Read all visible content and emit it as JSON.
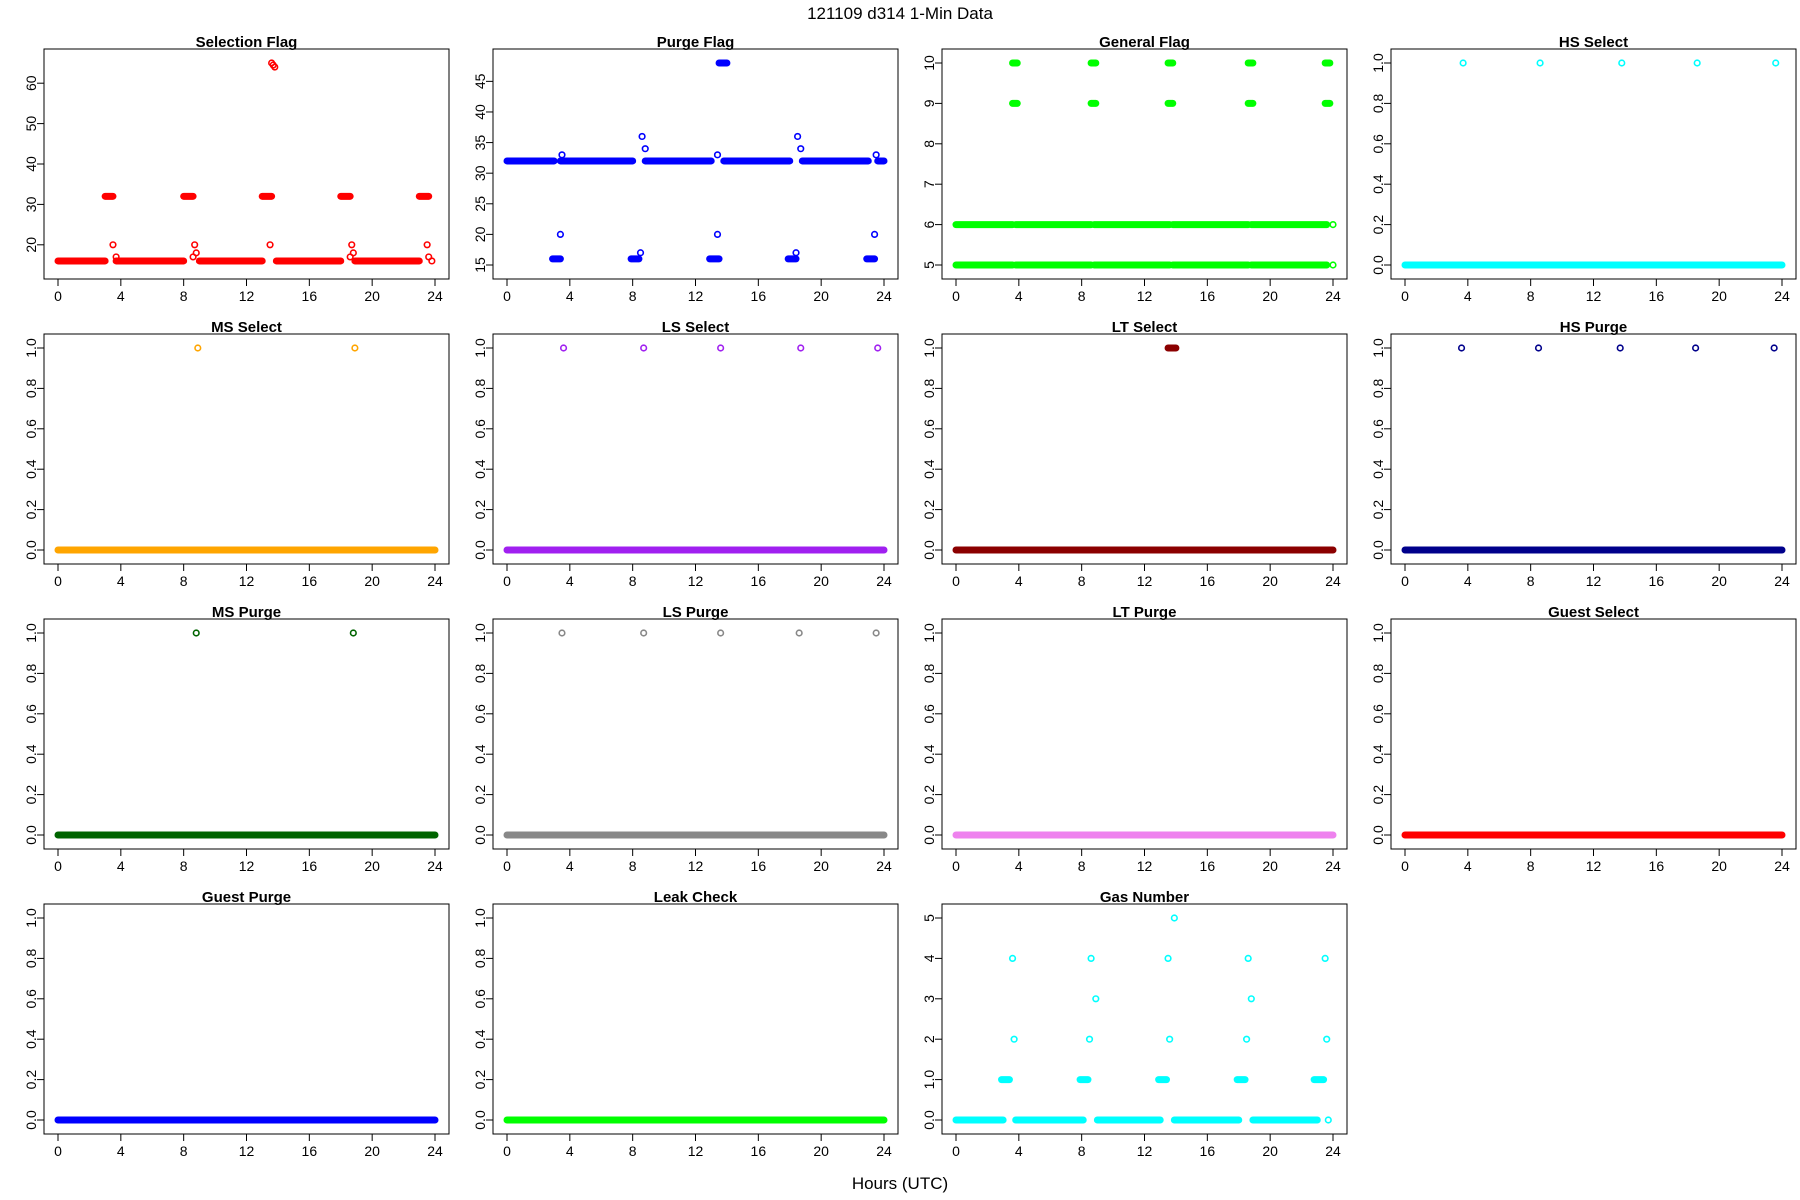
{
  "figure": {
    "title": "121109   d314   1-Min Data",
    "xlabel": "Hours (UTC)"
  },
  "chart_data": [
    {
      "type": "scatter",
      "title": "Selection Flag",
      "color": "#ff0000",
      "xlim": [
        0,
        24
      ],
      "ylim": [
        15,
        65
      ],
      "xticks": [
        0,
        4,
        8,
        12,
        16,
        20,
        24
      ],
      "yticks": [
        20,
        30,
        40,
        50,
        60
      ],
      "runs": [
        [
          0,
          3.0,
          16
        ],
        [
          3.7,
          8.0,
          16
        ],
        [
          9.0,
          13.0,
          16
        ],
        [
          13.9,
          18.0,
          16
        ],
        [
          18.9,
          23.0,
          16
        ],
        [
          3.0,
          3.5,
          32
        ],
        [
          8.0,
          8.6,
          32
        ],
        [
          13.0,
          13.6,
          32
        ],
        [
          18.0,
          18.6,
          32
        ],
        [
          23.0,
          23.6,
          32
        ]
      ],
      "points": [
        [
          3.5,
          20
        ],
        [
          3.7,
          17
        ],
        [
          8.6,
          17
        ],
        [
          8.7,
          20
        ],
        [
          8.8,
          18
        ],
        [
          13.5,
          20
        ],
        [
          13.6,
          65
        ],
        [
          13.7,
          64.5
        ],
        [
          13.8,
          64
        ],
        [
          18.6,
          17
        ],
        [
          18.7,
          20
        ],
        [
          18.8,
          18
        ],
        [
          23.5,
          20
        ],
        [
          23.6,
          17
        ],
        [
          23.8,
          16
        ]
      ]
    },
    {
      "type": "scatter",
      "title": "Purge Flag",
      "color": "#0000ff",
      "xlim": [
        0,
        24
      ],
      "ylim": [
        15,
        48
      ],
      "xticks": [
        0,
        4,
        8,
        12,
        16,
        20,
        24
      ],
      "yticks": [
        15,
        20,
        25,
        30,
        35,
        40,
        45
      ],
      "runs": [
        [
          0,
          3.0,
          32
        ],
        [
          3.4,
          8.0,
          32
        ],
        [
          8.8,
          13.0,
          32
        ],
        [
          13.8,
          18.0,
          32
        ],
        [
          18.8,
          23.0,
          32
        ],
        [
          23.6,
          24,
          32
        ],
        [
          2.9,
          3.4,
          16
        ],
        [
          7.9,
          8.4,
          16
        ],
        [
          12.9,
          13.5,
          16
        ],
        [
          17.9,
          18.4,
          16
        ],
        [
          22.9,
          23.4,
          16
        ],
        [
          13.5,
          14.0,
          48
        ]
      ],
      "points": [
        [
          3.4,
          20
        ],
        [
          3.5,
          33
        ],
        [
          8.5,
          17
        ],
        [
          8.6,
          36
        ],
        [
          8.8,
          34
        ],
        [
          13.4,
          20
        ],
        [
          13.4,
          33
        ],
        [
          18.4,
          17
        ],
        [
          18.5,
          36
        ],
        [
          18.7,
          34
        ],
        [
          23.4,
          20
        ],
        [
          23.5,
          33
        ]
      ]
    },
    {
      "type": "scatter",
      "title": "General Flag",
      "color": "#00ff00",
      "xlim": [
        0,
        24
      ],
      "ylim": [
        5,
        10
      ],
      "xticks": [
        0,
        4,
        8,
        12,
        16,
        20,
        24
      ],
      "yticks": [
        5,
        6,
        7,
        8,
        9,
        10
      ],
      "runs": [
        [
          0,
          3.6,
          5
        ],
        [
          3.8,
          8.6,
          5
        ],
        [
          8.8,
          13.6,
          5
        ],
        [
          13.8,
          18.6,
          5
        ],
        [
          18.8,
          23.6,
          5
        ],
        [
          0,
          3.6,
          6
        ],
        [
          3.8,
          8.6,
          6
        ],
        [
          8.8,
          13.6,
          6
        ],
        [
          13.8,
          18.6,
          6
        ],
        [
          18.8,
          23.6,
          6
        ],
        [
          3.6,
          3.9,
          9
        ],
        [
          8.6,
          8.9,
          9
        ],
        [
          13.5,
          13.8,
          9
        ],
        [
          18.6,
          18.9,
          9
        ],
        [
          23.5,
          23.8,
          9
        ],
        [
          3.6,
          3.9,
          10
        ],
        [
          8.6,
          8.9,
          10
        ],
        [
          13.5,
          13.8,
          10
        ],
        [
          18.6,
          18.9,
          10
        ],
        [
          23.5,
          23.8,
          10
        ]
      ],
      "points": [
        [
          24,
          5
        ],
        [
          24,
          6
        ]
      ]
    },
    {
      "type": "scatter",
      "title": "HS Select",
      "color": "#00ffff",
      "xlim": [
        0,
        24
      ],
      "ylim": [
        0,
        1
      ],
      "xticks": [
        0,
        4,
        8,
        12,
        16,
        20,
        24
      ],
      "yticks": [
        0,
        0.2,
        0.4,
        0.6,
        0.8,
        1.0
      ],
      "runs": [
        [
          0,
          24,
          0
        ]
      ],
      "points": [
        [
          3.7,
          1
        ],
        [
          8.6,
          1
        ],
        [
          13.8,
          1
        ],
        [
          18.6,
          1
        ],
        [
          23.6,
          1
        ]
      ]
    },
    {
      "type": "scatter",
      "title": "MS Select",
      "color": "#ffa500",
      "xlim": [
        0,
        24
      ],
      "ylim": [
        0,
        1
      ],
      "xticks": [
        0,
        4,
        8,
        12,
        16,
        20,
        24
      ],
      "yticks": [
        0,
        0.2,
        0.4,
        0.6,
        0.8,
        1.0
      ],
      "runs": [
        [
          0,
          24,
          0
        ]
      ],
      "points": [
        [
          8.9,
          1
        ],
        [
          18.9,
          1
        ]
      ]
    },
    {
      "type": "scatter",
      "title": "LS Select",
      "color": "#a020f0",
      "xlim": [
        0,
        24
      ],
      "ylim": [
        0,
        1
      ],
      "xticks": [
        0,
        4,
        8,
        12,
        16,
        20,
        24
      ],
      "yticks": [
        0,
        0.2,
        0.4,
        0.6,
        0.8,
        1.0
      ],
      "runs": [
        [
          0,
          24,
          0
        ]
      ],
      "points": [
        [
          3.6,
          1
        ],
        [
          8.7,
          1
        ],
        [
          13.6,
          1
        ],
        [
          18.7,
          1
        ],
        [
          23.6,
          1
        ]
      ]
    },
    {
      "type": "scatter",
      "title": "LT Select",
      "color": "#8b0000",
      "xlim": [
        0,
        24
      ],
      "ylim": [
        0,
        1
      ],
      "xticks": [
        0,
        4,
        8,
        12,
        16,
        20,
        24
      ],
      "yticks": [
        0,
        0.2,
        0.4,
        0.6,
        0.8,
        1.0
      ],
      "runs": [
        [
          0,
          24,
          0
        ],
        [
          13.5,
          14.0,
          1
        ]
      ],
      "points": []
    },
    {
      "type": "scatter",
      "title": "HS Purge",
      "color": "#00008b",
      "xlim": [
        0,
        24
      ],
      "ylim": [
        0,
        1
      ],
      "xticks": [
        0,
        4,
        8,
        12,
        16,
        20,
        24
      ],
      "yticks": [
        0,
        0.2,
        0.4,
        0.6,
        0.8,
        1.0
      ],
      "runs": [
        [
          0,
          24,
          0
        ]
      ],
      "points": [
        [
          3.6,
          1
        ],
        [
          8.5,
          1
        ],
        [
          13.7,
          1
        ],
        [
          18.5,
          1
        ],
        [
          23.5,
          1
        ]
      ]
    },
    {
      "type": "scatter",
      "title": "MS Purge",
      "color": "#006400",
      "xlim": [
        0,
        24
      ],
      "ylim": [
        0,
        1
      ],
      "xticks": [
        0,
        4,
        8,
        12,
        16,
        20,
        24
      ],
      "yticks": [
        0,
        0.2,
        0.4,
        0.6,
        0.8,
        1.0
      ],
      "runs": [
        [
          0,
          24,
          0
        ]
      ],
      "points": [
        [
          8.8,
          1
        ],
        [
          18.8,
          1
        ]
      ]
    },
    {
      "type": "scatter",
      "title": "LS Purge",
      "color": "#888888",
      "xlim": [
        0,
        24
      ],
      "ylim": [
        0,
        1
      ],
      "xticks": [
        0,
        4,
        8,
        12,
        16,
        20,
        24
      ],
      "yticks": [
        0,
        0.2,
        0.4,
        0.6,
        0.8,
        1.0
      ],
      "runs": [
        [
          0,
          24,
          0
        ]
      ],
      "points": [
        [
          3.5,
          1
        ],
        [
          8.7,
          1
        ],
        [
          13.6,
          1
        ],
        [
          18.6,
          1
        ],
        [
          23.5,
          1
        ]
      ]
    },
    {
      "type": "scatter",
      "title": "LT Purge",
      "color": "#ee82ee",
      "xlim": [
        0,
        24
      ],
      "ylim": [
        0,
        1
      ],
      "xticks": [
        0,
        4,
        8,
        12,
        16,
        20,
        24
      ],
      "yticks": [
        0,
        0.2,
        0.4,
        0.6,
        0.8,
        1.0
      ],
      "runs": [
        [
          0,
          24,
          0
        ]
      ],
      "points": []
    },
    {
      "type": "scatter",
      "title": "Guest Select",
      "color": "#ff0000",
      "xlim": [
        0,
        24
      ],
      "ylim": [
        0,
        1
      ],
      "xticks": [
        0,
        4,
        8,
        12,
        16,
        20,
        24
      ],
      "yticks": [
        0,
        0.2,
        0.4,
        0.6,
        0.8,
        1.0
      ],
      "runs": [
        [
          0,
          24,
          0
        ]
      ],
      "points": []
    },
    {
      "type": "scatter",
      "title": "Guest Purge",
      "color": "#0000ff",
      "xlim": [
        0,
        24
      ],
      "ylim": [
        0,
        1
      ],
      "xticks": [
        0,
        4,
        8,
        12,
        16,
        20,
        24
      ],
      "yticks": [
        0,
        0.2,
        0.4,
        0.6,
        0.8,
        1.0
      ],
      "runs": [
        [
          0,
          24,
          0
        ]
      ],
      "points": []
    },
    {
      "type": "scatter",
      "title": "Leak Check",
      "color": "#00ff00",
      "xlim": [
        0,
        24
      ],
      "ylim": [
        0,
        1
      ],
      "xticks": [
        0,
        4,
        8,
        12,
        16,
        20,
        24
      ],
      "yticks": [
        0,
        0.2,
        0.4,
        0.6,
        0.8,
        1.0
      ],
      "runs": [
        [
          0,
          24,
          0
        ]
      ],
      "points": []
    },
    {
      "type": "scatter",
      "title": "Gas Number",
      "color": "#00ffff",
      "xlim": [
        0,
        24
      ],
      "ylim": [
        0,
        5
      ],
      "xticks": [
        0,
        4,
        8,
        12,
        16,
        20,
        24
      ],
      "yticks": [
        0,
        1,
        2,
        3,
        4,
        5
      ],
      "runs": [
        [
          0,
          3.0,
          0
        ],
        [
          3.8,
          8.1,
          0
        ],
        [
          9.0,
          13.0,
          0
        ],
        [
          13.9,
          18.0,
          0
        ],
        [
          18.9,
          23.0,
          0
        ],
        [
          2.9,
          3.4,
          1
        ],
        [
          7.9,
          8.4,
          1
        ],
        [
          12.9,
          13.4,
          1
        ],
        [
          17.9,
          18.4,
          1
        ],
        [
          22.8,
          23.4,
          1
        ]
      ],
      "points": [
        [
          3.6,
          4
        ],
        [
          3.7,
          2
        ],
        [
          8.6,
          4
        ],
        [
          8.5,
          2
        ],
        [
          8.9,
          3
        ],
        [
          13.5,
          4
        ],
        [
          13.6,
          2
        ],
        [
          13.9,
          5
        ],
        [
          18.6,
          4
        ],
        [
          18.5,
          2
        ],
        [
          18.8,
          3
        ],
        [
          23.5,
          4
        ],
        [
          23.6,
          2
        ],
        [
          23.7,
          0
        ]
      ]
    }
  ]
}
